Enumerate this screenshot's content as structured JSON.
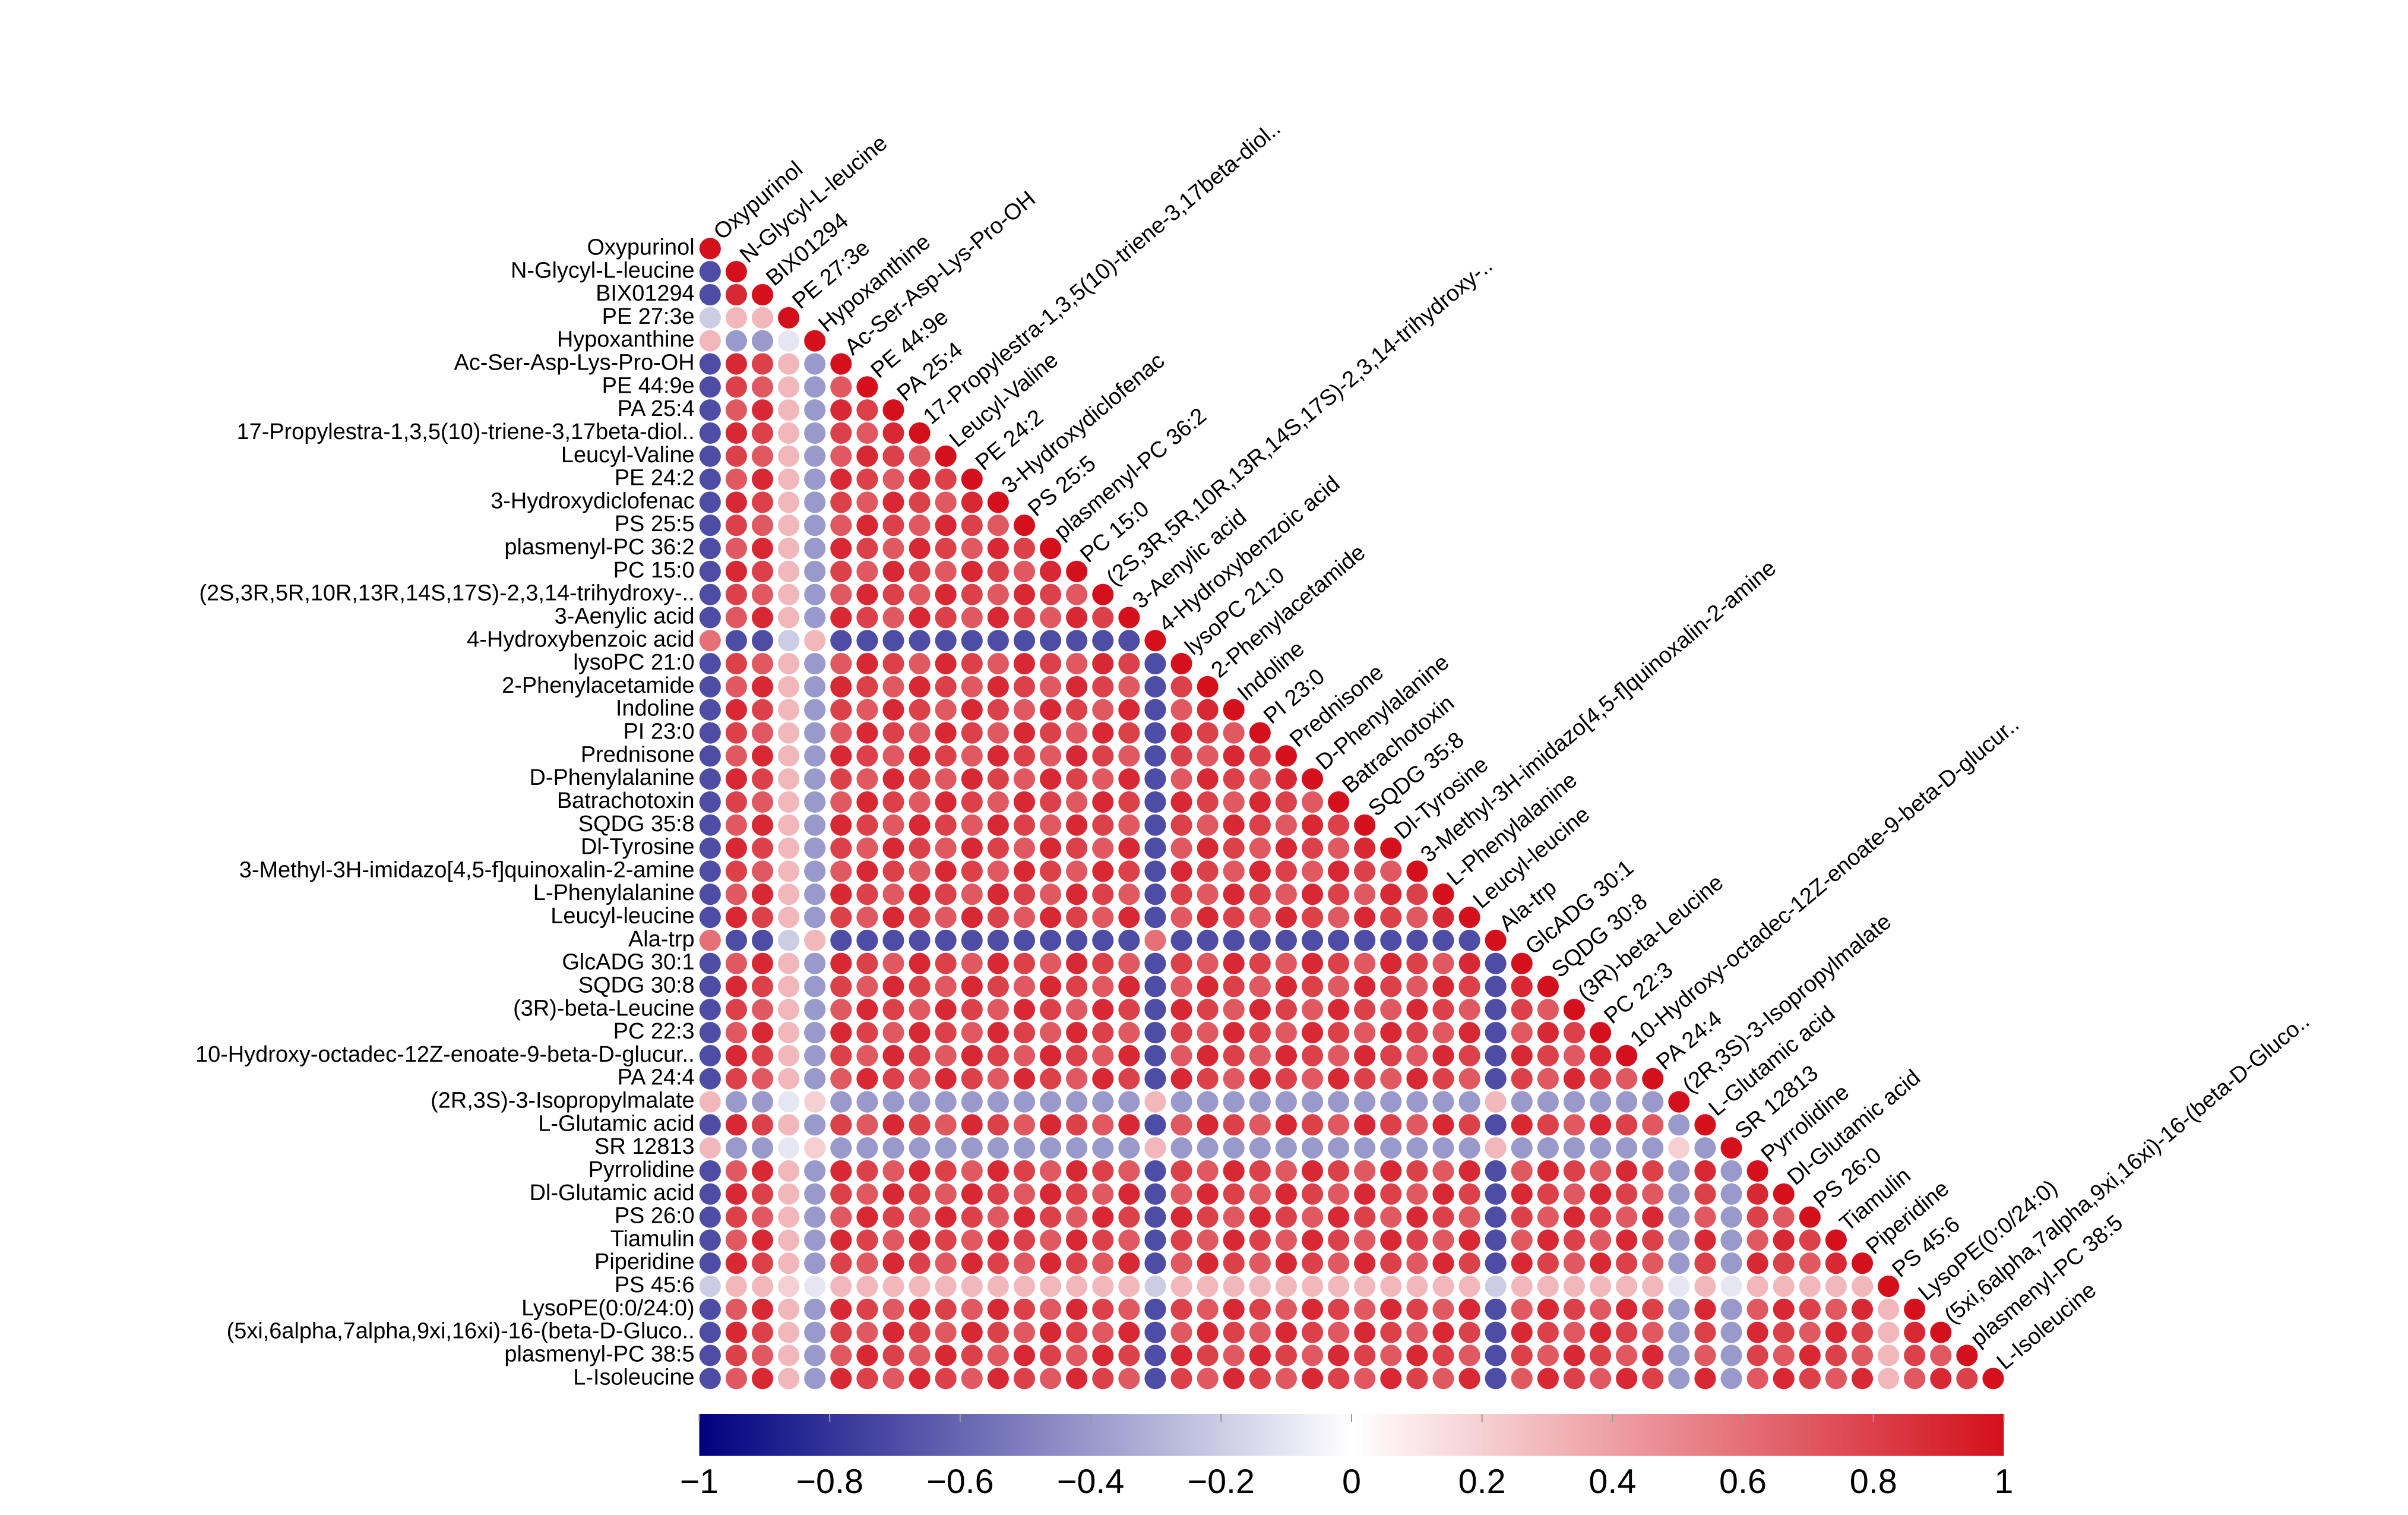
{
  "chart_data": {
    "type": "corr-triangle",
    "variables": [
      "Oxypurinol",
      "N-Glycyl-L-leucine",
      "BIX01294",
      "PE 27:3e",
      "Hypoxanthine",
      "Ac-Ser-Asp-Lys-Pro-OH",
      "PE 44:9e",
      "PA 25:4",
      "17-Propylestra-1,3,5(10)-triene-3,17beta-diol..",
      "Leucyl-Valine",
      "PE 24:2",
      "3-Hydroxydiclofenac",
      "PS 25:5",
      "plasmenyl-PC 36:2",
      "PC 15:0",
      "(2S,3R,5R,10R,13R,14S,17S)-2,3,14-trihydroxy-..",
      "3-Aenylic acid",
      "4-Hydroxybenzoic acid",
      "lysoPC 21:0",
      "2-Phenylacetamide",
      "Indoline",
      "PI 23:0",
      "Prednisone",
      "D-Phenylalanine",
      "Batrachotoxin",
      "SQDG 35:8",
      "Dl-Tyrosine",
      "3-Methyl-3H-imidazo[4,5-f]quinoxalin-2-amine",
      "L-Phenylalanine",
      "Leucyl-leucine",
      "Ala-trp",
      "GlcADG 30:1",
      "SQDG 30:8",
      "(3R)-beta-Leucine",
      "PC 22:3",
      "10-Hydroxy-octadec-12Z-enoate-9-beta-D-glucur..",
      "PA 24:4",
      "(2R,3S)-3-Isopropylmalate",
      "L-Glutamic acid",
      "SR 12813",
      "Pyrrolidine",
      "Dl-Glutamic acid",
      "PS 26:0",
      "Tiamulin",
      "Piperidine",
      "PS 45:6",
      "LysoPE(0:0/24:0)",
      "(5xi,6alpha,7alpha,9xi,16xi)-16-(beta-D-Gluco..",
      "plasmenyl-PC 38:5",
      "L-Isoleucine"
    ],
    "values": [
      [
        1
      ],
      [
        -0.7,
        1
      ],
      [
        -0.7,
        0.9,
        1
      ],
      [
        -0.2,
        0.3,
        0.3,
        1
      ],
      [
        0.3,
        -0.4,
        -0.4,
        -0.1,
        1
      ],
      [
        -0.7,
        0.9,
        0.8,
        0.3,
        -0.4,
        1
      ],
      [
        -0.7,
        0.8,
        0.7,
        0.3,
        -0.4,
        0.7,
        1
      ],
      [
        -0.7,
        0.7,
        0.9,
        0.3,
        -0.4,
        0.9,
        0.8,
        1
      ],
      [
        -0.7,
        0.9,
        0.8,
        0.3,
        -0.4,
        0.8,
        0.7,
        0.9,
        1
      ],
      [
        -0.7,
        0.8,
        0.7,
        0.3,
        -0.4,
        0.7,
        0.9,
        0.8,
        0.7,
        1
      ],
      [
        -0.7,
        0.7,
        0.9,
        0.3,
        -0.4,
        0.9,
        0.8,
        0.7,
        0.9,
        0.8,
        1
      ],
      [
        -0.7,
        0.9,
        0.8,
        0.3,
        -0.4,
        0.8,
        0.7,
        0.9,
        0.8,
        0.7,
        0.9,
        1
      ],
      [
        -0.7,
        0.8,
        0.7,
        0.3,
        -0.4,
        0.7,
        0.9,
        0.8,
        0.7,
        0.9,
        0.8,
        0.7,
        1
      ],
      [
        -0.7,
        0.7,
        0.9,
        0.3,
        -0.4,
        0.9,
        0.8,
        0.7,
        0.9,
        0.8,
        0.7,
        0.9,
        0.8,
        1
      ],
      [
        -0.7,
        0.9,
        0.8,
        0.3,
        -0.4,
        0.8,
        0.7,
        0.9,
        0.8,
        0.7,
        0.9,
        0.8,
        0.7,
        0.9,
        1
      ],
      [
        -0.7,
        0.8,
        0.7,
        0.3,
        -0.4,
        0.7,
        0.9,
        0.8,
        0.7,
        0.9,
        0.8,
        0.7,
        0.9,
        0.8,
        0.7,
        1
      ],
      [
        -0.7,
        0.7,
        0.9,
        0.3,
        -0.4,
        0.9,
        0.8,
        0.7,
        0.9,
        0.8,
        0.7,
        0.9,
        0.8,
        0.7,
        0.9,
        0.8,
        1
      ],
      [
        0.6,
        -0.7,
        -0.7,
        -0.2,
        0.3,
        -0.7,
        -0.7,
        -0.7,
        -0.7,
        -0.7,
        -0.7,
        -0.7,
        -0.7,
        -0.7,
        -0.7,
        -0.7,
        -0.7,
        1
      ],
      [
        -0.7,
        0.8,
        0.7,
        0.3,
        -0.4,
        0.7,
        0.9,
        0.8,
        0.7,
        0.9,
        0.8,
        0.7,
        0.9,
        0.8,
        0.7,
        0.9,
        0.8,
        -0.7,
        1
      ],
      [
        -0.7,
        0.7,
        0.9,
        0.3,
        -0.4,
        0.9,
        0.8,
        0.7,
        0.9,
        0.8,
        0.7,
        0.9,
        0.8,
        0.7,
        0.9,
        0.8,
        0.7,
        -0.7,
        0.8,
        1
      ],
      [
        -0.7,
        0.9,
        0.8,
        0.3,
        -0.4,
        0.8,
        0.7,
        0.9,
        0.8,
        0.7,
        0.9,
        0.8,
        0.7,
        0.9,
        0.8,
        0.7,
        0.9,
        -0.7,
        0.7,
        0.9,
        1
      ],
      [
        -0.7,
        0.8,
        0.7,
        0.3,
        -0.4,
        0.7,
        0.9,
        0.8,
        0.7,
        0.9,
        0.8,
        0.7,
        0.9,
        0.8,
        0.7,
        0.9,
        0.8,
        -0.7,
        0.9,
        0.8,
        0.7,
        1
      ],
      [
        -0.7,
        0.7,
        0.9,
        0.3,
        -0.4,
        0.9,
        0.8,
        0.7,
        0.9,
        0.8,
        0.7,
        0.9,
        0.8,
        0.7,
        0.9,
        0.8,
        0.7,
        -0.7,
        0.8,
        0.7,
        0.9,
        0.8,
        1
      ],
      [
        -0.7,
        0.9,
        0.8,
        0.3,
        -0.4,
        0.8,
        0.7,
        0.9,
        0.8,
        0.7,
        0.9,
        0.8,
        0.7,
        0.9,
        0.8,
        0.7,
        0.9,
        -0.7,
        0.7,
        0.9,
        0.8,
        0.7,
        0.9,
        1
      ],
      [
        -0.7,
        0.8,
        0.7,
        0.3,
        -0.4,
        0.7,
        0.9,
        0.8,
        0.7,
        0.9,
        0.8,
        0.7,
        0.9,
        0.8,
        0.7,
        0.9,
        0.8,
        -0.7,
        0.9,
        0.8,
        0.7,
        0.9,
        0.8,
        0.7,
        1
      ],
      [
        -0.7,
        0.7,
        0.9,
        0.3,
        -0.4,
        0.9,
        0.8,
        0.7,
        0.9,
        0.8,
        0.7,
        0.9,
        0.8,
        0.7,
        0.9,
        0.8,
        0.7,
        -0.7,
        0.8,
        0.7,
        0.9,
        0.8,
        0.7,
        0.9,
        0.8,
        1
      ],
      [
        -0.7,
        0.9,
        0.8,
        0.3,
        -0.4,
        0.8,
        0.7,
        0.9,
        0.8,
        0.7,
        0.9,
        0.8,
        0.7,
        0.9,
        0.8,
        0.7,
        0.9,
        -0.7,
        0.7,
        0.9,
        0.8,
        0.7,
        0.9,
        0.8,
        0.7,
        0.9,
        1
      ],
      [
        -0.7,
        0.8,
        0.7,
        0.3,
        -0.4,
        0.7,
        0.9,
        0.8,
        0.7,
        0.9,
        0.8,
        0.7,
        0.9,
        0.8,
        0.7,
        0.9,
        0.8,
        -0.7,
        0.9,
        0.8,
        0.7,
        0.9,
        0.8,
        0.7,
        0.9,
        0.8,
        0.7,
        1
      ],
      [
        -0.7,
        0.7,
        0.9,
        0.3,
        -0.4,
        0.9,
        0.8,
        0.7,
        0.9,
        0.8,
        0.7,
        0.9,
        0.8,
        0.7,
        0.9,
        0.8,
        0.7,
        -0.7,
        0.8,
        0.7,
        0.9,
        0.8,
        0.7,
        0.9,
        0.8,
        0.7,
        0.9,
        0.8,
        1
      ],
      [
        -0.7,
        0.9,
        0.8,
        0.3,
        -0.4,
        0.8,
        0.7,
        0.9,
        0.8,
        0.7,
        0.9,
        0.8,
        0.7,
        0.9,
        0.8,
        0.7,
        0.9,
        -0.7,
        0.7,
        0.9,
        0.8,
        0.7,
        0.9,
        0.8,
        0.7,
        0.9,
        0.8,
        0.7,
        0.9,
        1
      ],
      [
        0.6,
        -0.7,
        -0.7,
        -0.2,
        0.3,
        -0.7,
        -0.7,
        -0.7,
        -0.7,
        -0.7,
        -0.7,
        -0.7,
        -0.7,
        -0.7,
        -0.7,
        -0.7,
        -0.7,
        0.6,
        -0.7,
        -0.7,
        -0.7,
        -0.7,
        -0.7,
        -0.7,
        -0.7,
        -0.7,
        -0.7,
        -0.7,
        -0.7,
        -0.7,
        1
      ],
      [
        -0.7,
        0.7,
        0.9,
        0.3,
        -0.4,
        0.9,
        0.8,
        0.7,
        0.9,
        0.8,
        0.7,
        0.9,
        0.8,
        0.7,
        0.9,
        0.8,
        0.7,
        -0.7,
        0.8,
        0.7,
        0.9,
        0.8,
        0.7,
        0.9,
        0.8,
        0.7,
        0.9,
        0.8,
        0.7,
        0.9,
        -0.7,
        1
      ],
      [
        -0.7,
        0.9,
        0.8,
        0.3,
        -0.4,
        0.8,
        0.7,
        0.9,
        0.8,
        0.7,
        0.9,
        0.8,
        0.7,
        0.9,
        0.8,
        0.7,
        0.9,
        -0.7,
        0.7,
        0.9,
        0.8,
        0.7,
        0.9,
        0.8,
        0.7,
        0.9,
        0.8,
        0.7,
        0.9,
        0.8,
        -0.7,
        0.9,
        1
      ],
      [
        -0.7,
        0.8,
        0.7,
        0.3,
        -0.4,
        0.7,
        0.9,
        0.8,
        0.7,
        0.9,
        0.8,
        0.7,
        0.9,
        0.8,
        0.7,
        0.9,
        0.8,
        -0.7,
        0.9,
        0.8,
        0.7,
        0.9,
        0.8,
        0.7,
        0.9,
        0.8,
        0.7,
        0.9,
        0.8,
        0.7,
        -0.7,
        0.8,
        0.7,
        1
      ],
      [
        -0.7,
        0.7,
        0.9,
        0.3,
        -0.4,
        0.9,
        0.8,
        0.7,
        0.9,
        0.8,
        0.7,
        0.9,
        0.8,
        0.7,
        0.9,
        0.8,
        0.7,
        -0.7,
        0.8,
        0.7,
        0.9,
        0.8,
        0.7,
        0.9,
        0.8,
        0.7,
        0.9,
        0.8,
        0.7,
        0.9,
        -0.7,
        0.7,
        0.9,
        0.8,
        1
      ],
      [
        -0.7,
        0.9,
        0.8,
        0.3,
        -0.4,
        0.8,
        0.7,
        0.9,
        0.8,
        0.7,
        0.9,
        0.8,
        0.7,
        0.9,
        0.8,
        0.7,
        0.9,
        -0.7,
        0.7,
        0.9,
        0.8,
        0.7,
        0.9,
        0.8,
        0.7,
        0.9,
        0.8,
        0.7,
        0.9,
        0.8,
        -0.7,
        0.9,
        0.8,
        0.7,
        0.9,
        1
      ],
      [
        -0.7,
        0.8,
        0.7,
        0.3,
        -0.4,
        0.7,
        0.9,
        0.8,
        0.7,
        0.9,
        0.8,
        0.7,
        0.9,
        0.8,
        0.7,
        0.9,
        0.8,
        -0.7,
        0.9,
        0.8,
        0.7,
        0.9,
        0.8,
        0.7,
        0.9,
        0.8,
        0.7,
        0.9,
        0.8,
        0.7,
        -0.7,
        0.8,
        0.7,
        0.9,
        0.8,
        0.7,
        1
      ],
      [
        0.3,
        -0.4,
        -0.4,
        -0.1,
        0.2,
        -0.4,
        -0.4,
        -0.4,
        -0.4,
        -0.4,
        -0.4,
        -0.4,
        -0.4,
        -0.4,
        -0.4,
        -0.4,
        -0.4,
        0.3,
        -0.4,
        -0.4,
        -0.4,
        -0.4,
        -0.4,
        -0.4,
        -0.4,
        -0.4,
        -0.4,
        -0.4,
        -0.4,
        -0.4,
        0.3,
        -0.4,
        -0.4,
        -0.4,
        -0.4,
        -0.4,
        -0.4,
        1
      ],
      [
        -0.7,
        0.9,
        0.8,
        0.3,
        -0.4,
        0.8,
        0.7,
        0.9,
        0.8,
        0.7,
        0.9,
        0.8,
        0.7,
        0.9,
        0.8,
        0.7,
        0.9,
        -0.7,
        0.7,
        0.9,
        0.8,
        0.7,
        0.9,
        0.8,
        0.7,
        0.9,
        0.8,
        0.7,
        0.9,
        0.8,
        -0.7,
        0.9,
        0.8,
        0.7,
        0.9,
        0.8,
        0.7,
        -0.4,
        1
      ],
      [
        0.3,
        -0.4,
        -0.4,
        -0.1,
        0.2,
        -0.4,
        -0.4,
        -0.4,
        -0.4,
        -0.4,
        -0.4,
        -0.4,
        -0.4,
        -0.4,
        -0.4,
        -0.4,
        -0.4,
        0.3,
        -0.4,
        -0.4,
        -0.4,
        -0.4,
        -0.4,
        -0.4,
        -0.4,
        -0.4,
        -0.4,
        -0.4,
        -0.4,
        -0.4,
        0.3,
        -0.4,
        -0.4,
        -0.4,
        -0.4,
        -0.4,
        -0.4,
        0.2,
        -0.4,
        1
      ],
      [
        -0.7,
        0.7,
        0.9,
        0.3,
        -0.4,
        0.9,
        0.8,
        0.7,
        0.9,
        0.8,
        0.7,
        0.9,
        0.8,
        0.7,
        0.9,
        0.8,
        0.7,
        -0.7,
        0.8,
        0.7,
        0.9,
        0.8,
        0.7,
        0.9,
        0.8,
        0.7,
        0.9,
        0.8,
        0.7,
        0.9,
        -0.7,
        0.7,
        0.9,
        0.8,
        0.7,
        0.9,
        0.8,
        -0.4,
        0.9,
        -0.4,
        1
      ],
      [
        -0.7,
        0.9,
        0.8,
        0.3,
        -0.4,
        0.8,
        0.7,
        0.9,
        0.8,
        0.7,
        0.9,
        0.8,
        0.7,
        0.9,
        0.8,
        0.7,
        0.9,
        -0.7,
        0.7,
        0.9,
        0.8,
        0.7,
        0.9,
        0.8,
        0.7,
        0.9,
        0.8,
        0.7,
        0.9,
        0.8,
        -0.7,
        0.9,
        0.8,
        0.7,
        0.9,
        0.8,
        0.7,
        -0.4,
        0.8,
        -0.4,
        0.9,
        1
      ],
      [
        -0.7,
        0.8,
        0.7,
        0.3,
        -0.4,
        0.7,
        0.9,
        0.8,
        0.7,
        0.9,
        0.8,
        0.7,
        0.9,
        0.8,
        0.7,
        0.9,
        0.8,
        -0.7,
        0.9,
        0.8,
        0.7,
        0.9,
        0.8,
        0.7,
        0.9,
        0.8,
        0.7,
        0.9,
        0.8,
        0.7,
        -0.7,
        0.8,
        0.7,
        0.9,
        0.8,
        0.7,
        0.9,
        -0.4,
        0.7,
        -0.4,
        0.8,
        0.7,
        1
      ],
      [
        -0.7,
        0.7,
        0.9,
        0.3,
        -0.4,
        0.9,
        0.8,
        0.7,
        0.9,
        0.8,
        0.7,
        0.9,
        0.8,
        0.7,
        0.9,
        0.8,
        0.7,
        -0.7,
        0.8,
        0.7,
        0.9,
        0.8,
        0.7,
        0.9,
        0.8,
        0.7,
        0.9,
        0.8,
        0.7,
        0.9,
        -0.7,
        0.7,
        0.9,
        0.8,
        0.7,
        0.9,
        0.8,
        -0.4,
        0.9,
        -0.4,
        0.7,
        0.9,
        0.8,
        1
      ],
      [
        -0.7,
        0.9,
        0.8,
        0.3,
        -0.4,
        0.8,
        0.7,
        0.9,
        0.8,
        0.7,
        0.9,
        0.8,
        0.7,
        0.9,
        0.8,
        0.7,
        0.9,
        -0.7,
        0.7,
        0.9,
        0.8,
        0.7,
        0.9,
        0.8,
        0.7,
        0.9,
        0.8,
        0.7,
        0.9,
        0.8,
        -0.7,
        0.9,
        0.8,
        0.7,
        0.9,
        0.8,
        0.7,
        -0.4,
        0.8,
        -0.4,
        0.9,
        0.8,
        0.7,
        0.9,
        1
      ],
      [
        -0.2,
        0.3,
        0.3,
        0.2,
        -0.1,
        0.3,
        0.3,
        0.3,
        0.3,
        0.3,
        0.3,
        0.3,
        0.3,
        0.3,
        0.3,
        0.3,
        0.3,
        -0.2,
        0.3,
        0.3,
        0.3,
        0.3,
        0.3,
        0.3,
        0.3,
        0.3,
        0.3,
        0.3,
        0.3,
        0.3,
        -0.2,
        0.3,
        0.3,
        0.3,
        0.3,
        0.3,
        0.3,
        -0.1,
        0.3,
        -0.1,
        0.3,
        0.3,
        0.3,
        0.3,
        0.3,
        1
      ],
      [
        -0.7,
        0.7,
        0.9,
        0.3,
        -0.4,
        0.9,
        0.8,
        0.7,
        0.9,
        0.8,
        0.7,
        0.9,
        0.8,
        0.7,
        0.9,
        0.8,
        0.7,
        -0.7,
        0.8,
        0.7,
        0.9,
        0.8,
        0.7,
        0.9,
        0.8,
        0.7,
        0.9,
        0.8,
        0.7,
        0.9,
        -0.7,
        0.7,
        0.9,
        0.8,
        0.7,
        0.9,
        0.8,
        -0.4,
        0.9,
        -0.4,
        0.7,
        0.9,
        0.8,
        0.7,
        0.9,
        0.3,
        1
      ],
      [
        -0.7,
        0.9,
        0.8,
        0.3,
        -0.4,
        0.8,
        0.7,
        0.9,
        0.8,
        0.7,
        0.9,
        0.8,
        0.7,
        0.9,
        0.8,
        0.7,
        0.9,
        -0.7,
        0.7,
        0.9,
        0.8,
        0.7,
        0.9,
        0.8,
        0.7,
        0.9,
        0.8,
        0.7,
        0.9,
        0.8,
        -0.7,
        0.9,
        0.8,
        0.7,
        0.9,
        0.8,
        0.7,
        -0.4,
        0.8,
        -0.4,
        0.9,
        0.8,
        0.7,
        0.9,
        0.8,
        0.3,
        0.9,
        1
      ],
      [
        -0.7,
        0.8,
        0.7,
        0.3,
        -0.4,
        0.7,
        0.9,
        0.8,
        0.7,
        0.9,
        0.8,
        0.7,
        0.9,
        0.8,
        0.7,
        0.9,
        0.8,
        -0.7,
        0.9,
        0.8,
        0.7,
        0.9,
        0.8,
        0.7,
        0.9,
        0.8,
        0.7,
        0.9,
        0.8,
        0.7,
        -0.7,
        0.8,
        0.7,
        0.9,
        0.8,
        0.7,
        0.9,
        -0.4,
        0.7,
        -0.4,
        0.8,
        0.7,
        0.9,
        0.8,
        0.7,
        0.3,
        0.8,
        0.7,
        1
      ],
      [
        -0.7,
        0.7,
        0.9,
        0.3,
        -0.4,
        0.9,
        0.8,
        0.7,
        0.9,
        0.8,
        0.7,
        0.9,
        0.8,
        0.7,
        0.9,
        0.8,
        0.7,
        -0.7,
        0.8,
        0.7,
        0.9,
        0.8,
        0.7,
        0.9,
        0.8,
        0.7,
        0.9,
        0.8,
        0.7,
        0.9,
        -0.7,
        0.7,
        0.9,
        0.8,
        0.7,
        0.9,
        0.8,
        -0.4,
        0.9,
        -0.4,
        0.7,
        0.9,
        0.8,
        0.7,
        0.9,
        0.3,
        0.7,
        0.9,
        0.8,
        1
      ]
    ],
    "colorscale": [
      "#00007f",
      "#ffffff",
      "#d3101c"
    ],
    "clim": [
      -1,
      1
    ],
    "cticks": [
      {
        "value": -1,
        "label": "−1"
      },
      {
        "value": -0.8,
        "label": "−0.8"
      },
      {
        "value": -0.6,
        "label": "−0.6"
      },
      {
        "value": -0.4,
        "label": "−0.4"
      },
      {
        "value": -0.2,
        "label": "−0.2"
      },
      0,
      0.2,
      0.4,
      0.6,
      0.8,
      1
    ]
  }
}
